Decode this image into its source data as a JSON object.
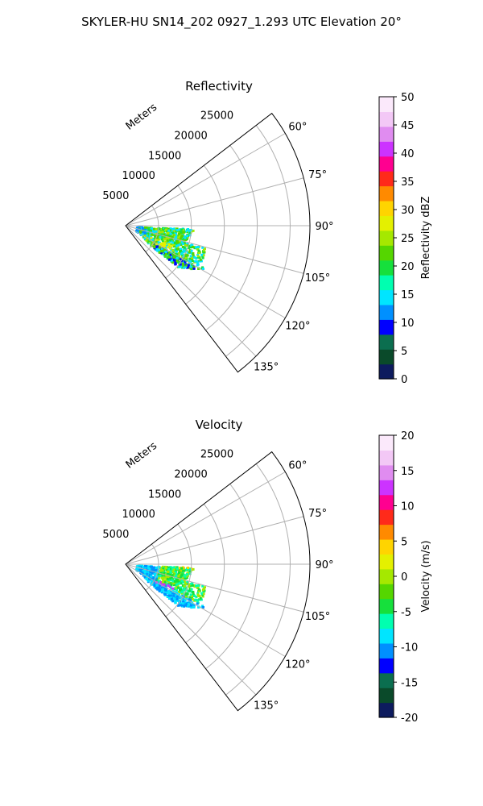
{
  "suptitle": "SKYLER-HU  SN14_202  0927_1.293 UTC Elevation 20°",
  "chart_data": [
    {
      "type": "heatmap",
      "subtype": "polar-radar-sector (PPI)",
      "title": "Reflectivity",
      "range_axis": {
        "label": "Meters",
        "ticks": [
          "5000",
          "10000",
          "15000",
          "20000",
          "25000"
        ],
        "rmax": 28000
      },
      "azimuth_axis": {
        "ticks": [
          "60°",
          "75°",
          "90°",
          "105°",
          "120°",
          "135°"
        ],
        "range_deg": [
          52.5,
          142.5
        ]
      },
      "grid": true,
      "colorbar": {
        "label": "Reflectivity dBZ",
        "min": 0,
        "max": 50,
        "ticks": [
          "0",
          "5",
          "10",
          "15",
          "20",
          "25",
          "30",
          "35",
          "40",
          "45",
          "50"
        ],
        "colors": [
          "#0d1b5e",
          "#0a4a2a",
          "#0b6e4f",
          "#0000ff",
          "#0090ff",
          "#00e5ff",
          "#00ffb0",
          "#16e03c",
          "#55d600",
          "#a5e800",
          "#e4f000",
          "#ffd400",
          "#ff8a00",
          "#ff2a1a",
          "#ff0090",
          "#cc33ff",
          "#e08cf0",
          "#f3c8f6",
          "#fbe9fb"
        ]
      },
      "data_description": "Echo cluster between ~92°–128° azimuth and ~2–13 km range; values mostly 12–25 dBZ (green/cyan) with a yellow 25–28 dBZ core near 115°, 6 km, and blue 5–10 dBZ patches along the western edge."
    },
    {
      "type": "heatmap",
      "subtype": "polar-radar-sector (PPI)",
      "title": "Velocity",
      "range_axis": {
        "label": "Meters",
        "ticks": [
          "5000",
          "10000",
          "15000",
          "20000",
          "25000"
        ],
        "rmax": 28000
      },
      "azimuth_axis": {
        "ticks": [
          "60°",
          "75°",
          "90°",
          "105°",
          "120°",
          "135°"
        ],
        "range_deg": [
          52.5,
          142.5
        ]
      },
      "grid": true,
      "colorbar": {
        "label": "Velocity (m/s)",
        "min": -20,
        "max": 20,
        "ticks": [
          "-20",
          "-15",
          "-10",
          "-5",
          "0",
          "5",
          "10",
          "15",
          "20"
        ],
        "colors": [
          "#0d1b5e",
          "#0a4a2a",
          "#0b6e4f",
          "#0000ff",
          "#0090ff",
          "#00e5ff",
          "#00ffb0",
          "#16e03c",
          "#55d600",
          "#a5e800",
          "#e4f000",
          "#ffd400",
          "#ff8a00",
          "#ff2a1a",
          "#ff0090",
          "#cc33ff",
          "#e08cf0",
          "#f3c8f6",
          "#fbe9fb"
        ]
      },
      "data_description": "Same echo footprint; cyan/blue -10 to -13 m/s near the radar and southwest, green -5 to -8 m/s mid-range, yellow 0 to 3 m/s at the northern tip (~87°, 10 km) with a small red 8–10 m/s spot, magenta ~15 m/s patch near 118°, 7 km."
    }
  ]
}
